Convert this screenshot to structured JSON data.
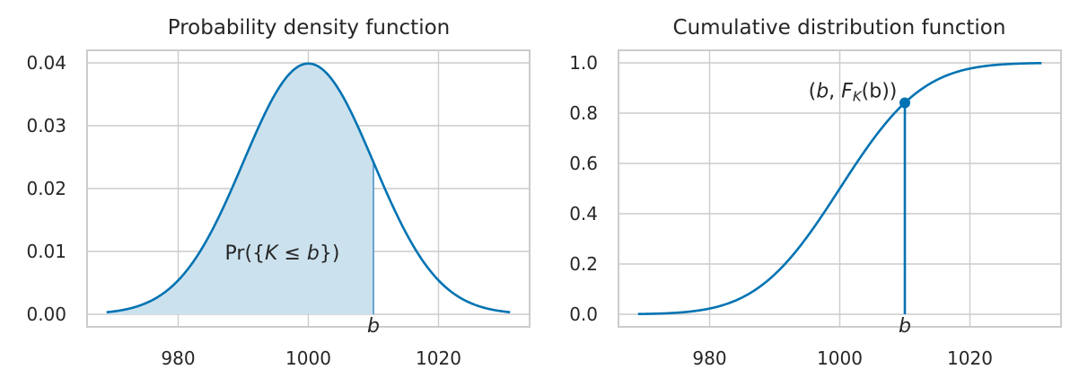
{
  "chart_data": [
    {
      "type": "area",
      "title": "Probability density function",
      "xlabel": "",
      "ylabel": "",
      "distribution": {
        "name": "normal",
        "mean": 1000,
        "sd": 10
      },
      "x_range": [
        969,
        1031
      ],
      "xlim": [
        966,
        1034
      ],
      "ylim": [
        -0.002,
        0.042
      ],
      "x_ticks": [
        980,
        1000,
        1020
      ],
      "y_ticks": [
        0.0,
        0.01,
        0.02,
        0.03,
        0.04
      ],
      "x_tick_labels": [
        "980",
        "1000",
        "1020"
      ],
      "y_tick_labels": [
        "0.00",
        "0.01",
        "0.02",
        "0.03",
        "0.04"
      ],
      "peak": {
        "x": 1000,
        "y": 0.0399
      },
      "b_value": 1010,
      "shaded_region": {
        "from": 969,
        "to": 1010
      },
      "annotations": {
        "b_label": "b",
        "area_label_prefix": "Pr({",
        "area_label_K": "K",
        "area_label_leq": " ≤ ",
        "area_label_b": "b",
        "area_label_suffix": "})"
      },
      "grid": true,
      "colors": {
        "line": "#0173b2",
        "fill": "#cce1ee"
      }
    },
    {
      "type": "line",
      "title": "Cumulative distribution function",
      "xlabel": "",
      "ylabel": "",
      "distribution": {
        "name": "normal",
        "mean": 1000,
        "sd": 10
      },
      "x_range": [
        969,
        1031
      ],
      "xlim": [
        966,
        1034
      ],
      "ylim": [
        -0.05,
        1.05
      ],
      "x_ticks": [
        980,
        1000,
        1020
      ],
      "y_ticks": [
        0.0,
        0.2,
        0.4,
        0.6,
        0.8,
        1.0
      ],
      "x_tick_labels": [
        "980",
        "1000",
        "1020"
      ],
      "y_tick_labels": [
        "0.0",
        "0.2",
        "0.4",
        "0.6",
        "0.8",
        "1.0"
      ],
      "b_value": 1010,
      "b_point": {
        "x": 1010,
        "y": 0.841
      },
      "annotations": {
        "b_label": "b",
        "point_open": "(",
        "point_b": "b",
        "point_comma": ", ",
        "point_F": "F",
        "point_sub": "K",
        "point_arg": "(b))"
      },
      "grid": true,
      "colors": {
        "line": "#0173b2"
      }
    }
  ]
}
